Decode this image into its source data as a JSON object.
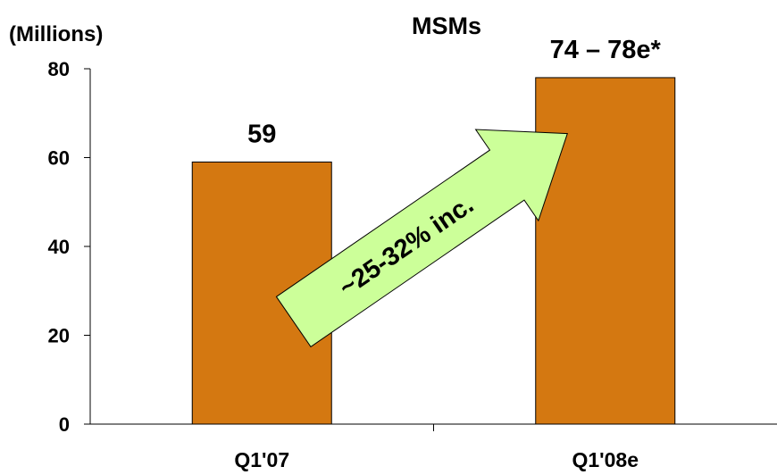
{
  "chart_data": {
    "type": "bar",
    "title": "MSMs",
    "ylabel": "(Millions)",
    "xlabel": "",
    "categories": [
      "Q1'07",
      "Q1'08e"
    ],
    "values": [
      59,
      78
    ],
    "data_labels": [
      "59",
      "74 – 78e*"
    ],
    "ylim": [
      0,
      80
    ],
    "yticks": [
      0,
      20,
      40,
      60,
      80
    ],
    "grid": false,
    "bar_color": "#D47811",
    "annotation": {
      "text": "~25-32% inc.",
      "shape": "arrow",
      "fill_color": "#CCFF99"
    }
  }
}
